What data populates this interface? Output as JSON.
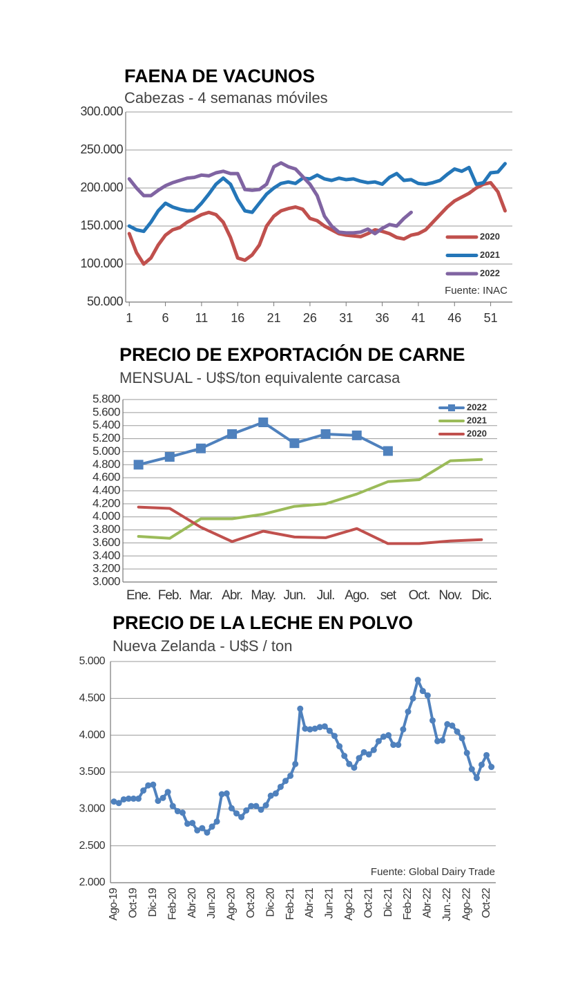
{
  "chart_data": [
    {
      "type": "line",
      "title": "FAENA DE VACUNOS",
      "subtitle": "Cabezas - 4 semanas móviles",
      "x": [
        1,
        2,
        3,
        4,
        5,
        6,
        7,
        8,
        9,
        10,
        11,
        12,
        13,
        14,
        15,
        16,
        17,
        18,
        19,
        20,
        21,
        22,
        23,
        24,
        25,
        26,
        27,
        28,
        29,
        30,
        31,
        32,
        33,
        34,
        35,
        36,
        37,
        38,
        39,
        40,
        41,
        42,
        43,
        44,
        45,
        46,
        47,
        48,
        49,
        50,
        51,
        52,
        53
      ],
      "xlim": [
        0.5,
        54
      ],
      "xticks": [
        1,
        6,
        11,
        16,
        21,
        26,
        31,
        36,
        41,
        46,
        51
      ],
      "ylim": [
        50000,
        300000
      ],
      "yticks": [
        {
          "value": 50000,
          "label": "50.000"
        },
        {
          "value": 100000,
          "label": "100.000"
        },
        {
          "value": 150000,
          "label": "150.000"
        },
        {
          "value": 200000,
          "label": "200.000"
        },
        {
          "value": 250000,
          "label": "250.000"
        },
        {
          "value": 300000,
          "label": "300.000"
        }
      ],
      "grid": true,
      "legend": "lower right",
      "source": "Fuente: INAC",
      "series": [
        {
          "name": "2020",
          "color": "#c0504d",
          "values": [
            140000,
            115000,
            100000,
            108000,
            125000,
            138000,
            145000,
            148000,
            155000,
            160000,
            165000,
            168000,
            165000,
            155000,
            135000,
            108000,
            105000,
            112000,
            125000,
            150000,
            163000,
            170000,
            173000,
            175000,
            172000,
            160000,
            157000,
            150000,
            145000,
            140000,
            138000,
            137000,
            136000,
            140000,
            145000,
            143000,
            140000,
            135000,
            133000,
            138000,
            140000,
            145000,
            155000,
            165000,
            175000,
            183000,
            188000,
            193000,
            200000,
            205000,
            207000,
            195000,
            170000
          ]
        },
        {
          "name": "2021",
          "color": "#2476b8",
          "values": [
            150000,
            145000,
            143000,
            155000,
            170000,
            180000,
            175000,
            172000,
            170000,
            170000,
            180000,
            192000,
            205000,
            213000,
            205000,
            185000,
            170000,
            168000,
            180000,
            192000,
            200000,
            206000,
            208000,
            206000,
            213000,
            212000,
            217000,
            212000,
            210000,
            213000,
            211000,
            212000,
            209000,
            207000,
            208000,
            205000,
            214000,
            219000,
            210000,
            211000,
            206000,
            205000,
            207000,
            210000,
            218000,
            225000,
            222000,
            227000,
            205000,
            207000,
            220000,
            221000,
            232000
          ]
        },
        {
          "name": "2022",
          "color": "#8064a2",
          "values": [
            212000,
            200000,
            190000,
            190000,
            197000,
            203000,
            207000,
            210000,
            213000,
            214000,
            217000,
            216000,
            220000,
            222000,
            219000,
            219000,
            198000,
            197000,
            198000,
            205000,
            228000,
            233000,
            228000,
            225000,
            215000,
            205000,
            190000,
            163000,
            150000,
            142000,
            141000,
            141000,
            142000,
            146000,
            140000,
            147000,
            152000,
            150000,
            160000,
            168000,
            null,
            null,
            null,
            null,
            null,
            null,
            null,
            null,
            null,
            null,
            null,
            null,
            null
          ]
        }
      ]
    },
    {
      "type": "line",
      "title": "PRECIO DE EXPORTACIÓN DE CARNE",
      "subtitle": "MENSUAL - U$S/ton equivalente carcasa",
      "categories": [
        "Ene.",
        "Feb.",
        "Mar.",
        "Abr.",
        "May.",
        "Jun.",
        "Jul.",
        "Ago.",
        "set",
        "Oct.",
        "Nov.",
        "Dic."
      ],
      "ylim": [
        3000,
        5800
      ],
      "yticks": [
        {
          "value": 3000,
          "label": "3.000"
        },
        {
          "value": 3200,
          "label": "3.200"
        },
        {
          "value": 3400,
          "label": "3.400"
        },
        {
          "value": 3600,
          "label": "3.600"
        },
        {
          "value": 3800,
          "label": "3.800"
        },
        {
          "value": 4000,
          "label": "4.000"
        },
        {
          "value": 4200,
          "label": "4.200"
        },
        {
          "value": 4400,
          "label": "4.400"
        },
        {
          "value": 4600,
          "label": "4.600"
        },
        {
          "value": 4800,
          "label": "4.800"
        },
        {
          "value": 5000,
          "label": "5.000"
        },
        {
          "value": 5200,
          "label": "5.200"
        },
        {
          "value": 5400,
          "label": "5.400"
        },
        {
          "value": 5600,
          "label": "5.600"
        },
        {
          "value": 5800,
          "label": "5.800"
        }
      ],
      "grid": true,
      "legend": "upper right",
      "series": [
        {
          "name": "2022",
          "color": "#4f81bd",
          "marker": "square",
          "values": [
            4800,
            4920,
            5050,
            5270,
            5450,
            5130,
            5270,
            5250,
            5010,
            null,
            null,
            null
          ]
        },
        {
          "name": "2021",
          "color": "#9bbb59",
          "values": [
            3700,
            3670,
            3970,
            3970,
            4040,
            4160,
            4200,
            4350,
            4540,
            4570,
            4860,
            4880
          ]
        },
        {
          "name": "2020",
          "color": "#c0504d",
          "values": [
            4150,
            4130,
            3840,
            3620,
            3780,
            3690,
            3680,
            3820,
            3590,
            3590,
            3630,
            3650
          ]
        }
      ]
    },
    {
      "type": "line",
      "title": "PRECIO DE LA LECHE EN POLVO",
      "subtitle": "Nueva Zelanda - U$S / ton",
      "categories": [
        "Ago-19",
        null,
        null,
        null,
        "Oct-19",
        null,
        null,
        null,
        "Dic-19",
        null,
        null,
        null,
        "Feb-20",
        null,
        null,
        null,
        "Abr-20",
        null,
        null,
        null,
        "Jun-20",
        null,
        null,
        null,
        "Ago-20",
        null,
        null,
        null,
        "Oct-20",
        null,
        null,
        null,
        "Dic-20",
        null,
        null,
        null,
        "Feb-21",
        null,
        null,
        null,
        "Abr-21",
        null,
        null,
        null,
        "Jun-21",
        null,
        null,
        null,
        "Ago-21",
        null,
        null,
        null,
        "Oct-21",
        null,
        null,
        null,
        "Dic-21",
        null,
        null,
        null,
        "Feb-22",
        null,
        null,
        null,
        "Abr-22",
        null,
        null,
        null,
        "Jun.-22",
        null,
        null,
        null,
        "Ago-22",
        null,
        null,
        null,
        "Oct-22",
        null
      ],
      "ylim": [
        2000,
        5000
      ],
      "yticks": [
        {
          "value": 2000,
          "label": "2.000"
        },
        {
          "value": 2500,
          "label": "2.500"
        },
        {
          "value": 3000,
          "label": "3.000"
        },
        {
          "value": 3500,
          "label": "3.500"
        },
        {
          "value": 4000,
          "label": "4.000"
        },
        {
          "value": 4500,
          "label": "4.500"
        },
        {
          "value": 5000,
          "label": "5.000"
        }
      ],
      "grid": true,
      "source": "Fuente: Global Dairy Trade",
      "series": [
        {
          "name": "Leche en polvo",
          "color": "#4f81bd",
          "marker": "circle",
          "values": [
            3100,
            3080,
            3130,
            3140,
            3140,
            3140,
            3250,
            3320,
            3330,
            3110,
            3150,
            3230,
            3040,
            2970,
            2950,
            2800,
            2810,
            2710,
            2740,
            2680,
            2760,
            2830,
            3200,
            3210,
            3010,
            2940,
            2890,
            2980,
            3040,
            3040,
            2990,
            3050,
            3180,
            3210,
            3300,
            3380,
            3450,
            3610,
            4360,
            4090,
            4080,
            4090,
            4110,
            4120,
            4060,
            3990,
            3850,
            3720,
            3610,
            3560,
            3690,
            3770,
            3740,
            3800,
            3920,
            3980,
            4000,
            3870,
            3870,
            4080,
            4320,
            4500,
            4750,
            4600,
            4540,
            4200,
            3920,
            3930,
            4150,
            4130,
            4050,
            3960,
            3760,
            3540,
            3420,
            3600,
            3730,
            3570
          ]
        }
      ]
    }
  ]
}
